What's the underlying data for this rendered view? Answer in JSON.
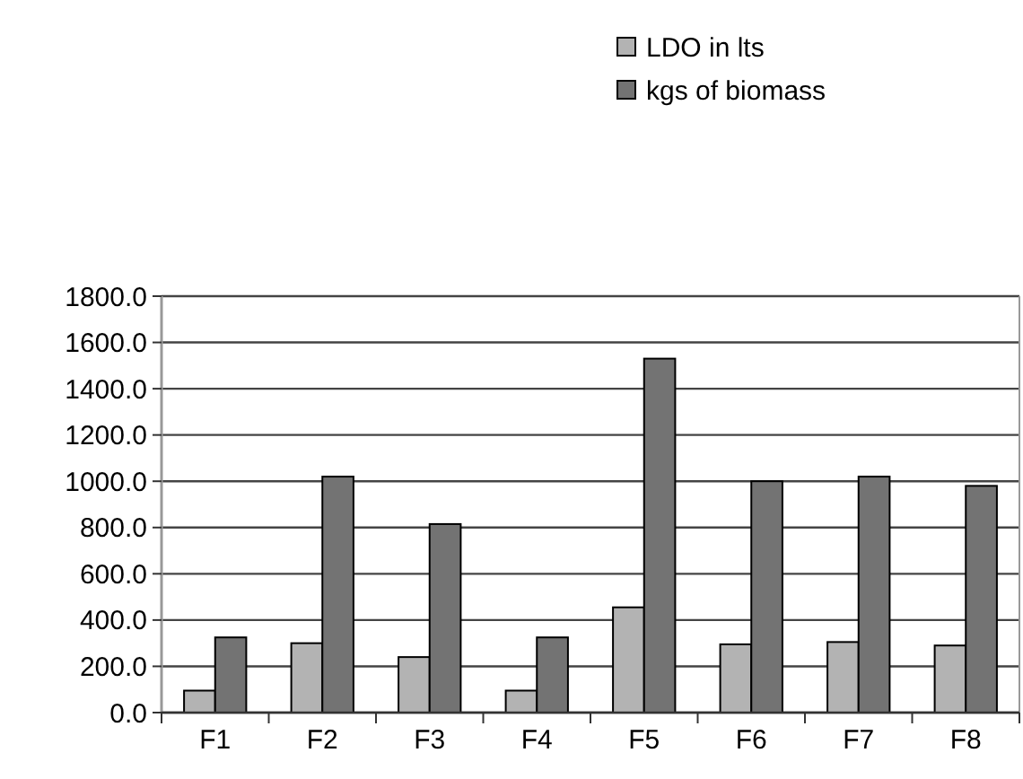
{
  "chart_data": {
    "type": "bar",
    "categories": [
      "F1",
      "F2",
      "F3",
      "F4",
      "F5",
      "F6",
      "F7",
      "F8"
    ],
    "series": [
      {
        "name": "LDO in lts",
        "color": "#b3b3b3",
        "values": [
          95,
          300,
          240,
          95,
          455,
          295,
          305,
          290
        ]
      },
      {
        "name": "kgs of biomass",
        "color": "#737373",
        "values": [
          325,
          1020,
          815,
          325,
          1530,
          1000,
          1020,
          980
        ]
      }
    ],
    "ylim": [
      0,
      1800
    ],
    "yticks": [
      {
        "value": 0,
        "label": "0.0"
      },
      {
        "value": 200,
        "label": "200.0"
      },
      {
        "value": 400,
        "label": "400.0"
      },
      {
        "value": 600,
        "label": "600.0"
      },
      {
        "value": 800,
        "label": "800.0"
      },
      {
        "value": 1000,
        "label": "1000.0"
      },
      {
        "value": 1200,
        "label": "1200.0"
      },
      {
        "value": 1400,
        "label": "1400.0"
      },
      {
        "value": 1600,
        "label": "1600.0"
      },
      {
        "value": 1800,
        "label": "1800.0"
      }
    ],
    "grid": "y",
    "legend": "top"
  }
}
